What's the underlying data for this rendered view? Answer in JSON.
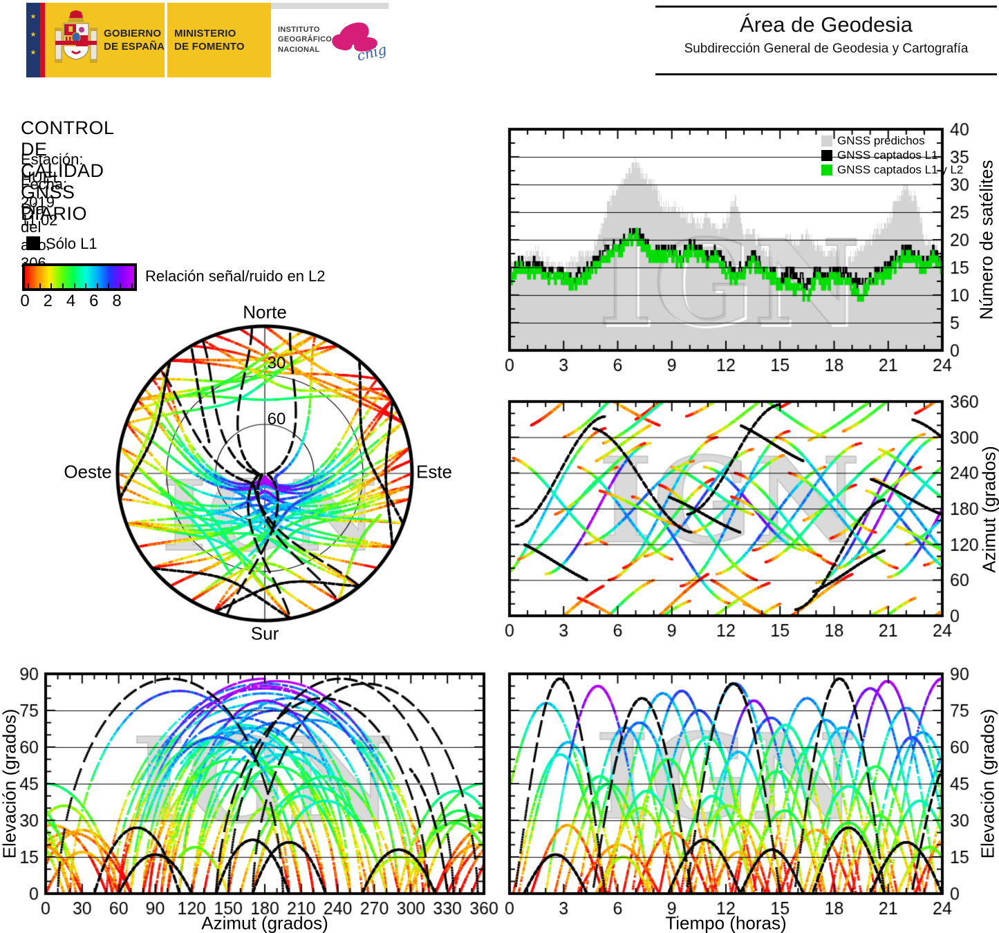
{
  "header": {
    "gobierno_line1": "GOBIERNO",
    "gobierno_line2": "DE ESPAÑA",
    "ministerio_line1": "MINISTERIO",
    "ministerio_line2": "DE FOMENTO",
    "ign_line1": "INSTITUTO",
    "ign_line2": "GEOGRÁFICO",
    "ign_line3": "NACIONAL",
    "cnig_label": "cnig",
    "area_title": "Área de Geodesia",
    "area_subtitle": "Subdirección General de Geodesia y Cartografía",
    "eu_stars": "★"
  },
  "info": {
    "title": "CONTROL DE CALIDAD GNSS DIARIO",
    "station": "Estación: HUEL",
    "date": "Fecha: 2019 11 02",
    "doy": "Día del año: 306"
  },
  "legend": {
    "solo_l1": "Sólo L1",
    "colorbar_label": "Relación señal/ruido en L2",
    "ticks": [
      0,
      2,
      4,
      6,
      8
    ],
    "minor_ticks": [
      0,
      1,
      2,
      3,
      4,
      5,
      6,
      7,
      8,
      9
    ],
    "range": [
      0,
      9.5
    ],
    "gradient": [
      "#ff0000",
      "#ff8800",
      "#ffee00",
      "#66ff00",
      "#00ff55",
      "#00ffdd",
      "#00aaff",
      "#2233ff",
      "#8800ff",
      "#cc00ff"
    ]
  },
  "watermark": {
    "text": "IGN"
  },
  "skyplot_labels": {
    "north": "Norte",
    "south": "Sur",
    "east": "Este",
    "west": "Oeste",
    "ring30": "30",
    "ring60": "60"
  },
  "chart_data": {
    "satellites_vs_time": {
      "type": "area+step",
      "ylabel": "Número de satélites",
      "xlim": [
        0,
        24
      ],
      "ylim": [
        0,
        40
      ],
      "xticks": [
        0,
        3,
        6,
        9,
        12,
        15,
        18,
        21,
        24
      ],
      "x_minor_step": 1,
      "yticks": [
        0,
        5,
        10,
        15,
        20,
        25,
        30,
        35,
        40
      ],
      "y_minor_step": 2.5,
      "grid": true,
      "x_step_hours": 0.5,
      "noise_seed": 7,
      "legend": [
        {
          "label": "GNSS predichos",
          "color": "#d3d3d3"
        },
        {
          "label": "GNSS captados L1",
          "color": "#000000"
        },
        {
          "label": "GNSS captados L1 y L2",
          "color": "#00dd00"
        }
      ],
      "series": [
        {
          "name": "GNSS predichos",
          "style": "area",
          "color": "#d3d3d3",
          "width": 1,
          "jitter": 0.9,
          "values": [
            16,
            16,
            17,
            18,
            16,
            15,
            15,
            16,
            17,
            18,
            21,
            27,
            29,
            32,
            34,
            31,
            30,
            26,
            26,
            25,
            24,
            23,
            24,
            22,
            23,
            28,
            21,
            21,
            19,
            17,
            18,
            21,
            19,
            21,
            19,
            17,
            18,
            16,
            17,
            19,
            20,
            22,
            23,
            28,
            29,
            28,
            20,
            19,
            18
          ]
        },
        {
          "name": "GNSS captados L1",
          "style": "step",
          "color": "#000000",
          "width": 2,
          "jitter": 1.0,
          "values": [
            14,
            16,
            15,
            16,
            14,
            14,
            14,
            13,
            14,
            15,
            17,
            18,
            19,
            20,
            22,
            19,
            18,
            18,
            18,
            17,
            19,
            18,
            17,
            18,
            15,
            14,
            15,
            17,
            15,
            14,
            13,
            14,
            13,
            12,
            14,
            13,
            14,
            14,
            13,
            12,
            13,
            14,
            15,
            17,
            18,
            17,
            16,
            18,
            15
          ]
        },
        {
          "name": "GNSS captados L1 y L2",
          "style": "step",
          "color": "#00dd00",
          "width": 3.2,
          "jitter": 1.0,
          "values": [
            13,
            15,
            14,
            14,
            13,
            13,
            13,
            12,
            13,
            14,
            16,
            17,
            18,
            19,
            21,
            18,
            17,
            17,
            17,
            16,
            18,
            17,
            16,
            17,
            14,
            13,
            14,
            16,
            14,
            13,
            12,
            12,
            11,
            10,
            13,
            12,
            13,
            13,
            11,
            10,
            12,
            13,
            14,
            16,
            17,
            16,
            15,
            17,
            14
          ]
        }
      ]
    },
    "azimuth_vs_time": {
      "type": "scatter-tracks",
      "ylabel": "Azimut (grados)",
      "xlim": [
        0,
        24
      ],
      "ylim": [
        0,
        360
      ],
      "xticks": [
        0,
        3,
        6,
        9,
        12,
        15,
        18,
        21,
        24
      ],
      "x_minor_step": 1,
      "yticks": [
        0,
        60,
        120,
        180,
        240,
        300,
        360
      ],
      "y_minor_step": 20,
      "grid": true,
      "source": "tracks_model"
    },
    "elevation_vs_azimuth": {
      "type": "scatter-tracks",
      "xlabel": "Azimut (grados)",
      "ylabel": "Elevación (grados)",
      "xlim": [
        0,
        360
      ],
      "ylim": [
        0,
        90
      ],
      "xticks": [
        0,
        30,
        60,
        90,
        120,
        150,
        180,
        210,
        240,
        270,
        300,
        330,
        360
      ],
      "x_minor_step": 10,
      "yticks": [
        0,
        15,
        30,
        45,
        60,
        75,
        90
      ],
      "y_minor_step": 5,
      "grid": true,
      "source": "tracks_model"
    },
    "elevation_vs_time": {
      "type": "scatter-tracks",
      "xlabel": "Tiempo (horas)",
      "ylabel": "Elevación (grados)",
      "xlim": [
        0,
        24
      ],
      "ylim": [
        0,
        90
      ],
      "xticks": [
        0,
        3,
        6,
        9,
        12,
        15,
        18,
        21,
        24
      ],
      "x_minor_step": 1,
      "yticks": [
        0,
        15,
        30,
        45,
        60,
        75,
        90
      ],
      "y_minor_step": 5,
      "grid": true,
      "source": "tracks_model"
    },
    "skyplot": {
      "type": "polar-tracks",
      "rings_el_deg": [
        30,
        60
      ],
      "compass": [
        "Norte",
        "Este",
        "Sur",
        "Oeste"
      ],
      "source": "tracks_model"
    },
    "tracks_model": {
      "comment_format": [
        "rise_h",
        "duration_h",
        "peak_elevation_deg",
        "azimuth_rise_deg",
        "azimuth_set_deg",
        "l1_only"
      ],
      "snr_scale": [
        0,
        9.5
      ],
      "noise_seed": 13,
      "passes": [
        [
          -1.2,
          6.5,
          78,
          45,
          315,
          0
        ],
        [
          0.5,
          5.5,
          62,
          95,
          250,
          0
        ],
        [
          5.5,
          6.0,
          82,
          60,
          300,
          0
        ],
        [
          7.5,
          6.0,
          75,
          100,
          280,
          0
        ],
        [
          9.5,
          6.0,
          86,
          50,
          310,
          0
        ],
        [
          11.5,
          6.0,
          72,
          70,
          250,
          0
        ],
        [
          13.5,
          6.0,
          80,
          110,
          290,
          0
        ],
        [
          17.0,
          6.0,
          84,
          55,
          305,
          0
        ],
        [
          19.0,
          6.0,
          76,
          95,
          265,
          0
        ],
        [
          21.0,
          6.0,
          88,
          65,
          295,
          0
        ],
        [
          23.0,
          6.0,
          74,
          85,
          255,
          0
        ],
        [
          18.2,
          5.5,
          87,
          80,
          300,
          0
        ],
        [
          6.8,
          5.5,
          83,
          200,
          20,
          0
        ],
        [
          10.8,
          5.5,
          79,
          250,
          110,
          0
        ],
        [
          14.8,
          5.5,
          71,
          300,
          140,
          0
        ],
        [
          2.0,
          5.8,
          85,
          70,
          290,
          0
        ],
        [
          3.8,
          5.2,
          68,
          250,
          95,
          0
        ],
        [
          12.5,
          5.6,
          69,
          240,
          85,
          0
        ],
        [
          20.2,
          5.4,
          66,
          230,
          75,
          0
        ],
        [
          8.3,
          5.4,
          64,
          220,
          60,
          0
        ],
        [
          4.2,
          6.0,
          70,
          120,
          260,
          0
        ],
        [
          6.3,
          5.0,
          55,
          80,
          230,
          0
        ],
        [
          10.2,
          5.0,
          58,
          140,
          270,
          0
        ],
        [
          14.2,
          5.0,
          60,
          90,
          220,
          0
        ],
        [
          16.3,
          5.0,
          44,
          160,
          280,
          0
        ],
        [
          17.8,
          5.0,
          52,
          130,
          250,
          0
        ],
        [
          22.0,
          5.0,
          59,
          120,
          240,
          0
        ],
        [
          12.3,
          5.0,
          50,
          200,
          100,
          0
        ],
        [
          9.0,
          4.5,
          40,
          250,
          170,
          0
        ],
        [
          15.5,
          6.0,
          68,
          240,
          80,
          0
        ],
        [
          19.8,
          5.0,
          64,
          210,
          70,
          0
        ],
        [
          2.5,
          5.0,
          48,
          170,
          290,
          0
        ],
        [
          20.5,
          4.5,
          38,
          280,
          180,
          0
        ],
        [
          0.2,
          5.2,
          57,
          265,
          120,
          0
        ],
        [
          1.2,
          4.0,
          28,
          320,
          410,
          0
        ],
        [
          3.0,
          5.0,
          45,
          300,
          420,
          0
        ],
        [
          7.0,
          4.0,
          25,
          330,
          430,
          0
        ],
        [
          11.0,
          4.0,
          30,
          300,
          380,
          0
        ],
        [
          15.0,
          4.0,
          26,
          350,
          430,
          0
        ],
        [
          18.5,
          4.0,
          32,
          310,
          390,
          0
        ],
        [
          22.5,
          4.0,
          24,
          340,
          420,
          0
        ],
        [
          13.0,
          4.5,
          34,
          20,
          -60,
          0
        ],
        [
          3.8,
          4.5,
          20,
          30,
          -40,
          0
        ],
        [
          5.2,
          4.8,
          42,
          290,
          385,
          0
        ],
        [
          9.8,
          4.6,
          36,
          335,
          415,
          0
        ],
        [
          16.6,
          4.4,
          29,
          295,
          375,
          0
        ],
        [
          5.0,
          4.5,
          35,
          210,
          150,
          0
        ],
        [
          4.8,
          3.0,
          15,
          260,
          320,
          0
        ],
        [
          11.2,
          3.0,
          17,
          60,
          0,
          0
        ],
        [
          21.5,
          3.5,
          19,
          150,
          95,
          0
        ],
        [
          0.3,
          5.0,
          88,
          150,
          335,
          1
        ],
        [
          15.8,
          5.0,
          88,
          10,
          195,
          1
        ],
        [
          9.8,
          5.2,
          86,
          170,
          355,
          1
        ],
        [
          8.8,
          4.0,
          22,
          200,
          140,
          1
        ],
        [
          12.8,
          3.5,
          18,
          320,
          260,
          1
        ],
        [
          16.8,
          4.0,
          27,
          40,
          110,
          1
        ],
        [
          20.0,
          4.0,
          21,
          230,
          170,
          1
        ],
        [
          0.8,
          3.5,
          16,
          120,
          60,
          1
        ],
        [
          4.6,
          5.5,
          80,
          315,
          140,
          1
        ],
        [
          22.3,
          4.5,
          55,
          330,
          240,
          1
        ]
      ]
    }
  }
}
